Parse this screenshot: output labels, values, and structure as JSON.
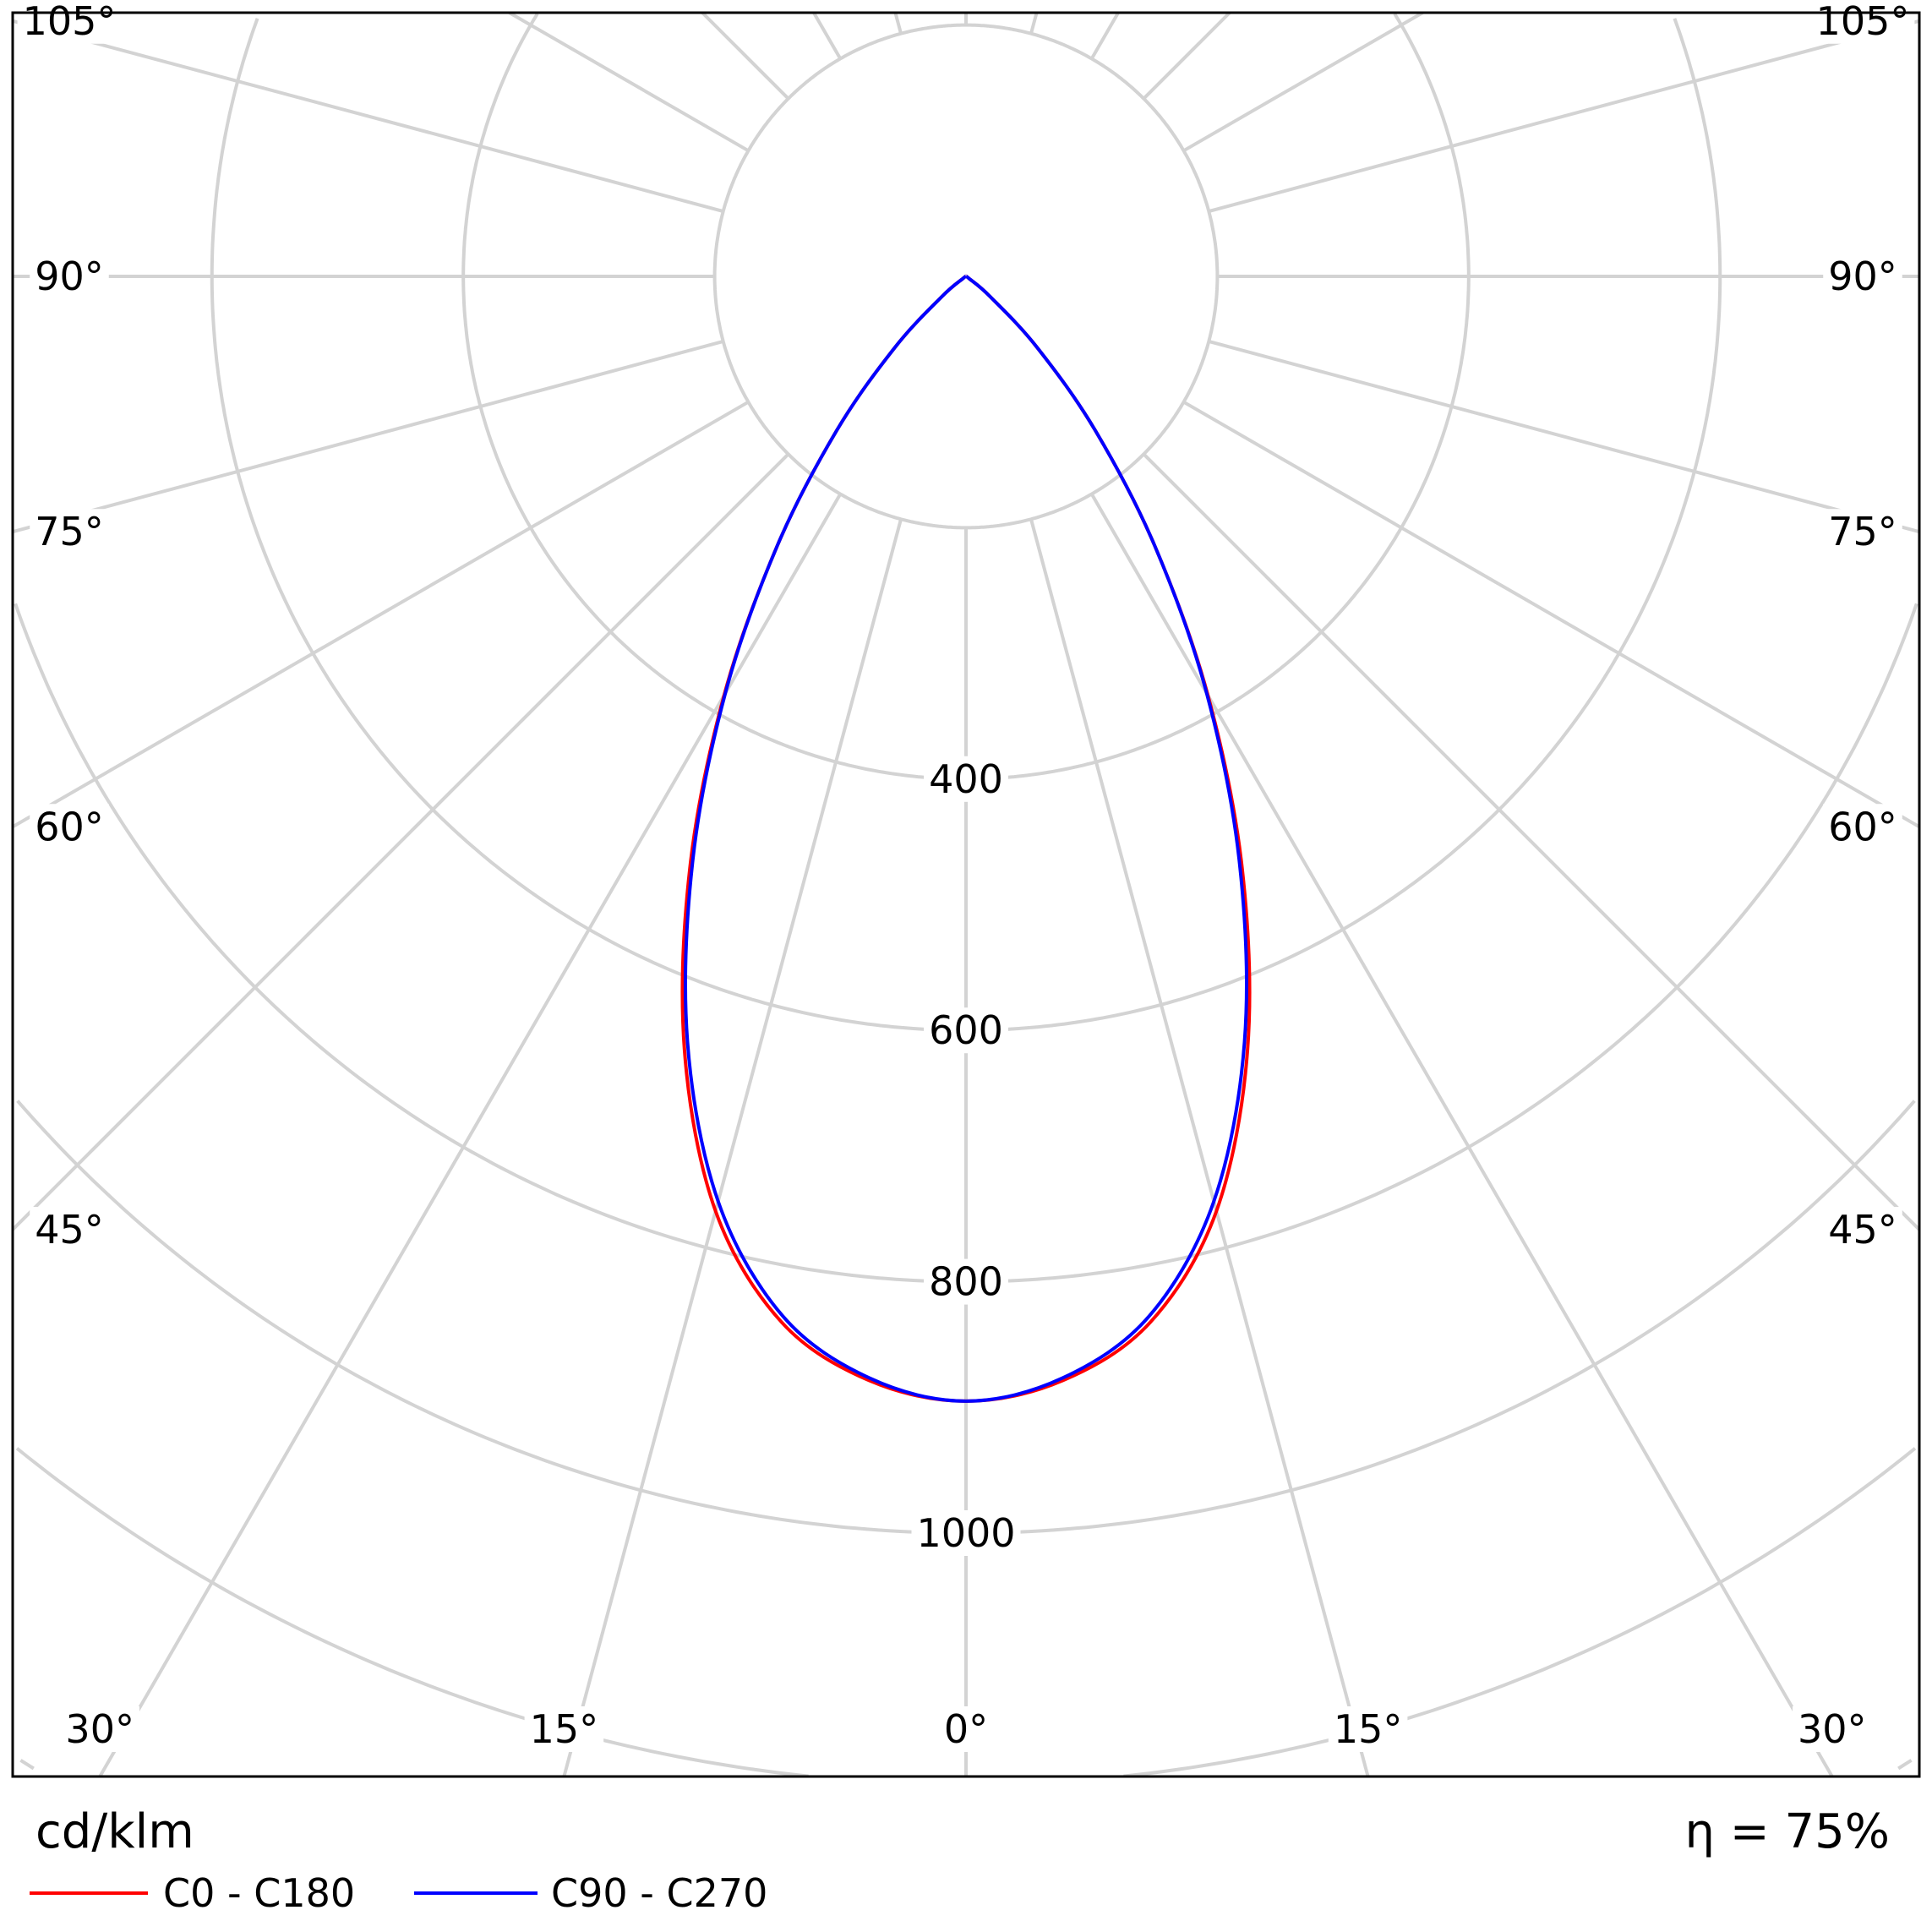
{
  "chart_data": {
    "type": "polar",
    "unit_label": "cd/klm",
    "efficiency_label": "η = 75%",
    "radial_ticks": [
      400,
      600,
      800,
      1000
    ],
    "ring_values": [
      200,
      400,
      600,
      800,
      1000,
      1200,
      1400
    ],
    "angle_step_deg": 15,
    "angle_labels_side": [
      "105°",
      "90°",
      "75°",
      "60°",
      "45°"
    ],
    "angle_labels_side_values": [
      105,
      90,
      75,
      60,
      45
    ],
    "angle_labels_bottom": [
      "30°",
      "15°",
      "0°",
      "15°",
      "30°"
    ],
    "angle_labels_bottom_values": [
      -30,
      -15,
      0,
      15,
      30
    ],
    "gamma_deg": [
      0,
      5,
      10,
      15,
      20,
      25,
      30,
      35,
      40,
      45,
      50,
      55,
      60
    ],
    "series": [
      {
        "name": "C0 - C180",
        "color": "#ff0000",
        "values": [
          895,
          882,
          845,
          770,
          655,
          520,
          385,
          262,
          160,
          80,
          25,
          3,
          0
        ]
      },
      {
        "name": "C90 - C270",
        "color": "#0000ff",
        "values": [
          895,
          880,
          840,
          762,
          648,
          515,
          383,
          262,
          160,
          80,
          25,
          3,
          0
        ]
      }
    ]
  }
}
